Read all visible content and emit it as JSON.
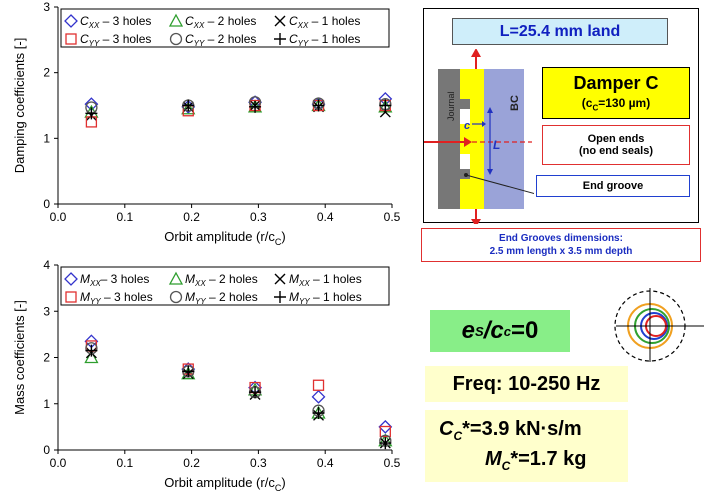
{
  "chart_data": [
    {
      "type": "scatter",
      "ylabel": "Damping coefficients [-]",
      "xlabel": "Orbit amplitude (r/c",
      "xlabel_sub": "C",
      "xlabel_end": ")",
      "xlim": [
        0,
        0.5
      ],
      "ylim": [
        0,
        3
      ],
      "xticks": [
        "0.0",
        "0.1",
        "0.2",
        "0.3",
        "0.4",
        "0.5"
      ],
      "yticks": [
        "0",
        "1",
        "2",
        "3"
      ],
      "legend_position": "top",
      "x": [
        0.05,
        0.195,
        0.295,
        0.39,
        0.49
      ],
      "series": [
        {
          "name": "C",
          "sub": "XX",
          "suffix": " – 3 holes",
          "color": "#3333cc",
          "marker": "diamond",
          "values": [
            1.52,
            1.48,
            1.55,
            1.52,
            1.6
          ]
        },
        {
          "name": "C",
          "sub": "XX",
          "suffix": " – 2 holes",
          "color": "#2e9e2e",
          "marker": "triangle",
          "values": [
            1.4,
            1.45,
            1.48,
            1.5,
            1.48
          ]
        },
        {
          "name": "C",
          "sub": "XX",
          "suffix": " – 1 holes",
          "color": "#000000",
          "marker": "x",
          "values": [
            1.35,
            1.48,
            1.5,
            1.48,
            1.4
          ]
        },
        {
          "name": "C",
          "sub": "YY",
          "suffix": " – 3 holes",
          "color": "#e03030",
          "marker": "square",
          "values": [
            1.25,
            1.42,
            1.5,
            1.5,
            1.5
          ]
        },
        {
          "name": "C",
          "sub": "YY",
          "suffix": " – 2 holes",
          "color": "#555555",
          "marker": "circle",
          "values": [
            1.47,
            1.5,
            1.55,
            1.53,
            1.52
          ]
        },
        {
          "name": "C",
          "sub": "YY",
          "suffix": " – 1 holes",
          "color": "#000000",
          "marker": "plus",
          "values": [
            1.38,
            1.5,
            1.48,
            1.5,
            1.5
          ]
        }
      ]
    },
    {
      "type": "scatter",
      "ylabel": "Mass coefficients [-]",
      "xlabel": "Orbit amplitude (r/c",
      "xlabel_sub": "C",
      "xlabel_end": ")",
      "xlim": [
        0,
        0.5
      ],
      "ylim": [
        0,
        4
      ],
      "xticks": [
        "0.0",
        "0.1",
        "0.2",
        "0.3",
        "0.4",
        "0.5"
      ],
      "yticks": [
        "0",
        "1",
        "2",
        "3",
        "4"
      ],
      "legend_position": "top",
      "x": [
        0.05,
        0.195,
        0.295,
        0.39,
        0.49
      ],
      "series": [
        {
          "name": "M",
          "sub": "XX",
          "suffix": "– 3 holes",
          "color": "#3333cc",
          "marker": "diamond",
          "values": [
            2.35,
            1.75,
            1.35,
            1.15,
            0.5
          ]
        },
        {
          "name": "M",
          "sub": "XX",
          "suffix": " – 2 holes",
          "color": "#2e9e2e",
          "marker": "triangle",
          "values": [
            2.0,
            1.65,
            1.3,
            0.8,
            0.2
          ]
        },
        {
          "name": "M",
          "sub": "XX",
          "suffix": " – 1 holes",
          "color": "#000000",
          "marker": "x",
          "values": [
            2.1,
            1.65,
            1.2,
            0.75,
            0.15
          ]
        },
        {
          "name": "M",
          "sub": "YY",
          "suffix": " – 3 holes",
          "color": "#e03030",
          "marker": "square",
          "values": [
            2.25,
            1.75,
            1.35,
            1.4,
            0.4
          ]
        },
        {
          "name": "M",
          "sub": "YY",
          "suffix": " – 2 holes",
          "color": "#555555",
          "marker": "circle",
          "values": [
            2.2,
            1.7,
            1.25,
            0.85,
            0.2
          ]
        },
        {
          "name": "M",
          "sub": "YY",
          "suffix": " – 1 holes",
          "color": "#000000",
          "marker": "plus",
          "values": [
            2.15,
            1.7,
            1.25,
            0.8,
            0.15
          ]
        }
      ]
    }
  ],
  "diagram": {
    "land_title": "L=25.4 mm land",
    "journal_label": "Journal",
    "bc_label": "BC",
    "c_label": "c",
    "l_label": "L",
    "damper_title": "Damper C",
    "damper_sub_pre": "(c",
    "damper_sub_sub": "C",
    "damper_sub_post": "=130 µm)",
    "open_ends_line1": "Open ends",
    "open_ends_line2": "(no end seals)",
    "end_groove": "End groove",
    "grooves_dim_line1": "End Grooves dimensions:",
    "grooves_dim_line2": "2.5 mm  length x 3.5 mm  depth"
  },
  "info": {
    "ecc_e": "e",
    "ecc_e_sub": "S",
    "ecc_slash": "/c",
    "ecc_c_sub": "c",
    "ecc_val": "=0",
    "freq": "Freq: 10-250 Hz",
    "cc_c": "C",
    "cc_sub": "C",
    "cc_val": "*=3.9 kN·s/m",
    "mc_m": "M",
    "mc_sub": "C",
    "mc_val": "*=1.7 kg"
  },
  "colors": {
    "light_blue": "#cfeefa",
    "yellow": "#ffff00",
    "light_green": "#88ee88",
    "cream": "#ffffcc",
    "red_border": "#e03030",
    "blue_border": "#2040d0",
    "dark_gray": "#666666"
  }
}
